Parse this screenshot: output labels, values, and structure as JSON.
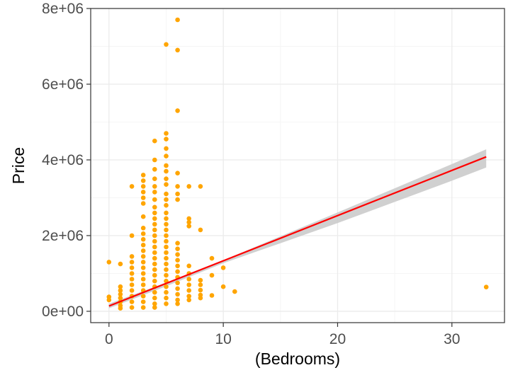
{
  "chart_data": {
    "type": "scatter",
    "xlabel": "(Bedrooms)",
    "ylabel": "Price",
    "xlim": [
      -1.6,
      34.6
    ],
    "ylim": [
      -300000,
      8000000
    ],
    "x_ticks": [
      0,
      10,
      20,
      30
    ],
    "x_tick_labels": [
      "0",
      "10",
      "20",
      "30"
    ],
    "y_ticks": [
      0,
      2000000,
      4000000,
      6000000,
      8000000
    ],
    "y_tick_labels": [
      "0e+00",
      "2e+06",
      "4e+06",
      "6e+06",
      "8e+06"
    ],
    "grid": true,
    "theme": "bw",
    "colors": {
      "points": "#FFA500",
      "fit_line": "#FF0000",
      "confidence_band": "#C8C8C8",
      "panel_border": "#333333",
      "grid_major": "#EBEBEB",
      "grid_minor": "#F5F5F5"
    },
    "points": [
      [
        0,
        380000
      ],
      [
        0,
        300000
      ],
      [
        0,
        1300000
      ],
      [
        1,
        1250000
      ],
      [
        1,
        650000
      ],
      [
        1,
        550000
      ],
      [
        1,
        450000
      ],
      [
        1,
        350000
      ],
      [
        1,
        250000
      ],
      [
        1,
        150000
      ],
      [
        1,
        80000
      ],
      [
        2,
        3300000
      ],
      [
        2,
        2000000
      ],
      [
        2,
        1450000
      ],
      [
        2,
        1300000
      ],
      [
        2,
        1150000
      ],
      [
        2,
        1000000
      ],
      [
        2,
        850000
      ],
      [
        2,
        700000
      ],
      [
        2,
        550000
      ],
      [
        2,
        400000
      ],
      [
        2,
        250000
      ],
      [
        2,
        100000
      ],
      [
        3,
        3600000
      ],
      [
        3,
        3450000
      ],
      [
        3,
        3300000
      ],
      [
        3,
        3150000
      ],
      [
        3,
        3000000
      ],
      [
        3,
        2850000
      ],
      [
        3,
        2500000
      ],
      [
        3,
        2200000
      ],
      [
        3,
        2050000
      ],
      [
        3,
        1900000
      ],
      [
        3,
        1750000
      ],
      [
        3,
        1600000
      ],
      [
        3,
        1450000
      ],
      [
        3,
        1300000
      ],
      [
        3,
        1150000
      ],
      [
        3,
        1000000
      ],
      [
        3,
        850000
      ],
      [
        3,
        700000
      ],
      [
        3,
        550000
      ],
      [
        3,
        400000
      ],
      [
        3,
        250000
      ],
      [
        3,
        100000
      ],
      [
        4,
        4500000
      ],
      [
        4,
        4000000
      ],
      [
        4,
        3750000
      ],
      [
        4,
        3500000
      ],
      [
        4,
        3300000
      ],
      [
        4,
        3150000
      ],
      [
        4,
        2950000
      ],
      [
        4,
        2750000
      ],
      [
        4,
        2600000
      ],
      [
        4,
        2450000
      ],
      [
        4,
        2300000
      ],
      [
        4,
        2150000
      ],
      [
        4,
        2000000
      ],
      [
        4,
        1850000
      ],
      [
        4,
        1700000
      ],
      [
        4,
        1550000
      ],
      [
        4,
        1400000
      ],
      [
        4,
        1250000
      ],
      [
        4,
        1100000
      ],
      [
        4,
        950000
      ],
      [
        4,
        800000
      ],
      [
        4,
        650000
      ],
      [
        4,
        500000
      ],
      [
        4,
        350000
      ],
      [
        4,
        200000
      ],
      [
        4,
        100000
      ],
      [
        5,
        7050000
      ],
      [
        5,
        4700000
      ],
      [
        5,
        4550000
      ],
      [
        5,
        4300000
      ],
      [
        5,
        4100000
      ],
      [
        5,
        3850000
      ],
      [
        5,
        3700000
      ],
      [
        5,
        3500000
      ],
      [
        5,
        3350000
      ],
      [
        5,
        3100000
      ],
      [
        5,
        2950000
      ],
      [
        5,
        2800000
      ],
      [
        5,
        2600000
      ],
      [
        5,
        2450000
      ],
      [
        5,
        2300000
      ],
      [
        5,
        2150000
      ],
      [
        5,
        2000000
      ],
      [
        5,
        1850000
      ],
      [
        5,
        1700000
      ],
      [
        5,
        1550000
      ],
      [
        5,
        1400000
      ],
      [
        5,
        1250000
      ],
      [
        5,
        1100000
      ],
      [
        5,
        950000
      ],
      [
        5,
        800000
      ],
      [
        5,
        650000
      ],
      [
        5,
        500000
      ],
      [
        5,
        350000
      ],
      [
        5,
        200000
      ],
      [
        6,
        7700000
      ],
      [
        6,
        6900000
      ],
      [
        6,
        5300000
      ],
      [
        6,
        3650000
      ],
      [
        6,
        3300000
      ],
      [
        6,
        3100000
      ],
      [
        6,
        2950000
      ],
      [
        6,
        1800000
      ],
      [
        6,
        1650000
      ],
      [
        6,
        1500000
      ],
      [
        6,
        1350000
      ],
      [
        6,
        1200000
      ],
      [
        6,
        1050000
      ],
      [
        6,
        900000
      ],
      [
        6,
        750000
      ],
      [
        6,
        600000
      ],
      [
        6,
        450000
      ],
      [
        6,
        300000
      ],
      [
        6,
        200000
      ],
      [
        7,
        3300000
      ],
      [
        7,
        2450000
      ],
      [
        7,
        2350000
      ],
      [
        7,
        2250000
      ],
      [
        7,
        1200000
      ],
      [
        7,
        1000000
      ],
      [
        7,
        850000
      ],
      [
        7,
        700000
      ],
      [
        7,
        550000
      ],
      [
        7,
        400000
      ],
      [
        7,
        300000
      ],
      [
        8,
        3300000
      ],
      [
        8,
        2150000
      ],
      [
        8,
        820000
      ],
      [
        8,
        700000
      ],
      [
        8,
        560000
      ],
      [
        8,
        430000
      ],
      [
        8,
        350000
      ],
      [
        9,
        1400000
      ],
      [
        9,
        950000
      ],
      [
        9,
        420000
      ],
      [
        10,
        1150000
      ],
      [
        10,
        650000
      ],
      [
        11,
        520000
      ],
      [
        33,
        640000
      ]
    ],
    "fit": {
      "x0": 0,
      "y0": 140000,
      "x1": 33,
      "y1": 4080000,
      "band": [
        {
          "x": 0,
          "lo": 80000,
          "hi": 200000
        },
        {
          "x": 5,
          "lo": 660000,
          "hi": 760000
        },
        {
          "x": 10,
          "lo": 1270000,
          "hi": 1350000
        },
        {
          "x": 15,
          "lo": 1800000,
          "hi": 1980000
        },
        {
          "x": 20,
          "lo": 2330000,
          "hi": 2610000
        },
        {
          "x": 25,
          "lo": 2890000,
          "hi": 3250000
        },
        {
          "x": 30,
          "lo": 3450000,
          "hi": 3890000
        },
        {
          "x": 33,
          "lo": 3800000,
          "hi": 4280000
        }
      ]
    }
  }
}
